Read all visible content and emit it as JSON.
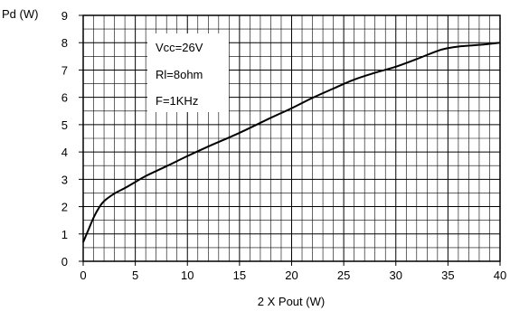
{
  "chart_data": {
    "type": "line",
    "title": "",
    "xlabel": "2 X Pout (W)",
    "ylabel": "Pd (W)",
    "xlim": [
      0,
      40
    ],
    "ylim": [
      0,
      9
    ],
    "x_ticks": [
      0,
      5,
      10,
      15,
      20,
      25,
      30,
      35,
      40
    ],
    "y_ticks": [
      0,
      1,
      2,
      3,
      4,
      5,
      6,
      7,
      8,
      9
    ],
    "x_minor_step": 1,
    "y_minor_step": 0.5,
    "grid": true,
    "annotations": [
      "Vcc=26V",
      "Rl=8ohm",
      "F=1KHz"
    ],
    "series": [
      {
        "color": "#000000",
        "points": [
          [
            0,
            0.7
          ],
          [
            0.5,
            1.15
          ],
          [
            1,
            1.6
          ],
          [
            1.5,
            1.95
          ],
          [
            2,
            2.2
          ],
          [
            3,
            2.48
          ],
          [
            4,
            2.68
          ],
          [
            5,
            2.9
          ],
          [
            6,
            3.12
          ],
          [
            8,
            3.48
          ],
          [
            10,
            3.85
          ],
          [
            12,
            4.2
          ],
          [
            15,
            4.7
          ],
          [
            18,
            5.25
          ],
          [
            20,
            5.6
          ],
          [
            22,
            5.98
          ],
          [
            24,
            6.32
          ],
          [
            26,
            6.65
          ],
          [
            28,
            6.9
          ],
          [
            30,
            7.12
          ],
          [
            32,
            7.4
          ],
          [
            34,
            7.7
          ],
          [
            35,
            7.8
          ],
          [
            36,
            7.86
          ],
          [
            38,
            7.92
          ],
          [
            40,
            8.0
          ]
        ]
      }
    ]
  }
}
